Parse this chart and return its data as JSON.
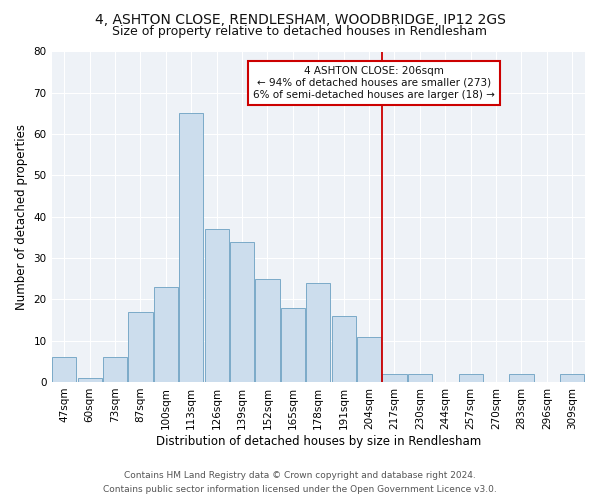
{
  "title": "4, ASHTON CLOSE, RENDLESHAM, WOODBRIDGE, IP12 2GS",
  "subtitle": "Size of property relative to detached houses in Rendlesham",
  "xlabel": "Distribution of detached houses by size in Rendlesham",
  "ylabel": "Number of detached properties",
  "categories": [
    "47sqm",
    "60sqm",
    "73sqm",
    "87sqm",
    "100sqm",
    "113sqm",
    "126sqm",
    "139sqm",
    "152sqm",
    "165sqm",
    "178sqm",
    "191sqm",
    "204sqm",
    "217sqm",
    "230sqm",
    "244sqm",
    "257sqm",
    "270sqm",
    "283sqm",
    "296sqm",
    "309sqm"
  ],
  "values": [
    6,
    1,
    6,
    17,
    23,
    65,
    37,
    34,
    25,
    18,
    24,
    16,
    11,
    2,
    2,
    0,
    2,
    0,
    2,
    0,
    2
  ],
  "bar_color": "#ccdded",
  "bar_edge_color": "#7aaac8",
  "vline_color": "#cc0000",
  "ylim": [
    0,
    80
  ],
  "yticks": [
    0,
    10,
    20,
    30,
    40,
    50,
    60,
    70,
    80
  ],
  "annotation_text": "4 ASHTON CLOSE: 206sqm\n← 94% of detached houses are smaller (273)\n6% of semi-detached houses are larger (18) →",
  "annotation_box_facecolor": "#ffffff",
  "annotation_box_edgecolor": "#cc0000",
  "footer_line1": "Contains HM Land Registry data © Crown copyright and database right 2024.",
  "footer_line2": "Contains public sector information licensed under the Open Government Licence v3.0.",
  "background_color": "#ffffff",
  "plot_background_color": "#eef2f7",
  "title_fontsize": 10,
  "subtitle_fontsize": 9,
  "axis_label_fontsize": 8.5,
  "tick_fontsize": 7.5,
  "annotation_fontsize": 7.5,
  "footer_fontsize": 6.5,
  "grid_color": "#ffffff",
  "vline_x_index": 12
}
